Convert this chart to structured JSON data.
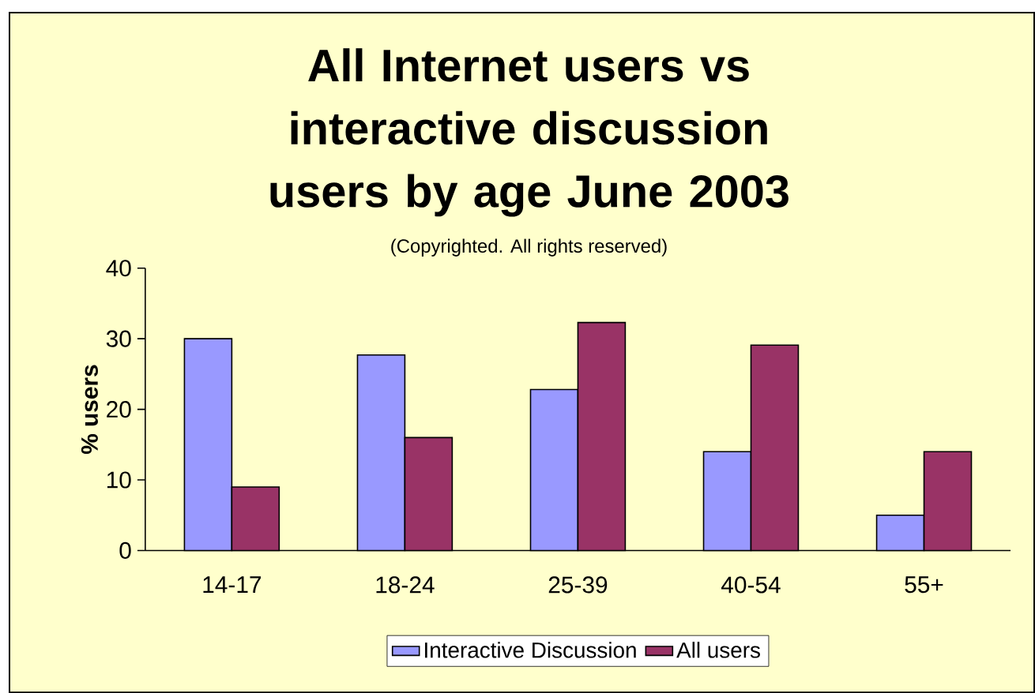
{
  "chart_data": {
    "type": "bar",
    "title": "All Internet users vs interactive discussion users by age June 2003",
    "subtitle": "(Copyrighted. All rights reserved)",
    "ylabel": "% users",
    "categories": [
      "14-17",
      "18-24",
      "25-39",
      "40-54",
      "55+"
    ],
    "series": [
      {
        "name": "Interactive Discussion",
        "color": "#9999ff",
        "values": [
          30,
          27.7,
          22.8,
          14,
          5
        ]
      },
      {
        "name": "All users",
        "color": "#993366",
        "values": [
          9,
          16,
          32.3,
          29.1,
          14
        ]
      }
    ],
    "ylim": [
      0,
      40
    ],
    "yticks": [
      0,
      10,
      20,
      30,
      40
    ],
    "grid": false,
    "legend": "bottom"
  }
}
